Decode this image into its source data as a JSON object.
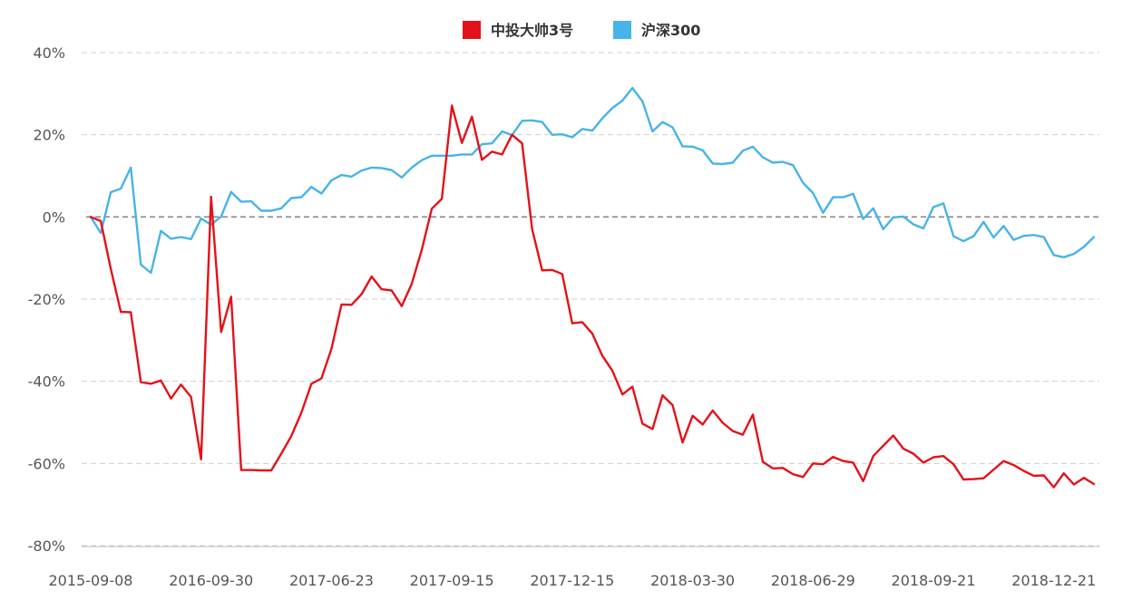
{
  "chart_data": {
    "type": "line",
    "title": "",
    "xlabel": "",
    "ylabel": "",
    "ylim": [
      -80,
      40
    ],
    "y_unit": "%",
    "y_ticks": [
      40,
      20,
      0,
      -20,
      -40,
      -60,
      -80
    ],
    "y_tick_labels": [
      "40%",
      "20%",
      "0%",
      "-20%",
      "-40%",
      "-60%",
      "-80%"
    ],
    "x_tick_labels": [
      "2015-09-08",
      "2016-09-30",
      "2017-06-23",
      "2017-09-15",
      "2017-12-15",
      "2018-03-30",
      "2018-06-29",
      "2018-09-21",
      "2018-12-21"
    ],
    "x_tick_indices": [
      0,
      12,
      24,
      36,
      48,
      60,
      72,
      84,
      96
    ],
    "grid": true,
    "legend_position": "top-center",
    "series": [
      {
        "name": "中投大帅3号",
        "color": "#e3121a",
        "values": [
          0,
          -1,
          -12.6,
          -23.1,
          -23.2,
          -40.2,
          -40.6,
          -39.8,
          -44.2,
          -40.8,
          -43.8,
          -59.0,
          4.9,
          -28,
          -19.4,
          -61.6,
          -61.6,
          -61.7,
          -61.7,
          -57.6,
          -53.3,
          -47.6,
          -40.6,
          -39.3,
          -32.1,
          -21.3,
          -21.4,
          -18.8,
          -14.5,
          -17.6,
          -17.9,
          -21.7,
          -16.3,
          -8,
          2.0,
          4.4,
          27.1,
          18,
          24.4,
          13.9,
          15.9,
          15.2,
          20.0,
          17.9,
          -2.9,
          -13.0,
          -12.9,
          -13.9,
          -25.9,
          -25.6,
          -28.4,
          -33.8,
          -37.4,
          -43.2,
          -41.3,
          -50.3,
          -51.6,
          -43.4,
          -45.8,
          -54.9,
          -48.4,
          -50.5,
          -47.1,
          -50.1,
          -52.1,
          -53.0,
          -48.1,
          -59.6,
          -61.2,
          -61.1,
          -62.6,
          -63.3,
          -60.0,
          -60.2,
          -58.4,
          -59.4,
          -59.8,
          -64.3,
          -58.2,
          -55.7,
          -53.2,
          -56.4,
          -57.6,
          -59.8,
          -58.5,
          -58.2,
          -60.2,
          -63.9,
          -63.8,
          -63.6,
          -61.5,
          -59.4,
          -60.4,
          -61.8,
          -63.0,
          -62.9,
          -65.8,
          -62.4,
          -65.1,
          -63.5,
          -65.0
        ]
      },
      {
        "name": "沪深300",
        "color": "#46b4e8",
        "values": [
          0,
          -3.9,
          6.0,
          6.9,
          12.0,
          -11.6,
          -13.6,
          -3.4,
          -5.3,
          -4.9,
          -5.4,
          -0.4,
          -1.9,
          0.1,
          6.1,
          3.7,
          3.8,
          1.5,
          1.5,
          2.1,
          4.6,
          4.8,
          7.3,
          5.7,
          8.9,
          10.2,
          9.8,
          11.3,
          12.0,
          11.9,
          11.4,
          9.6,
          12.0,
          13.8,
          14.9,
          14.9,
          14.9,
          15.2,
          15.2,
          17.7,
          17.9,
          20.8,
          19.9,
          23.4,
          23.5,
          23.1,
          20.0,
          20.1,
          19.4,
          21.4,
          21.0,
          24.0,
          26.5,
          28.3,
          31.4,
          28.1,
          20.8,
          23.1,
          21.8,
          17.2,
          17.1,
          16.2,
          13.0,
          12.9,
          13.2,
          16.1,
          17.1,
          14.5,
          13.2,
          13.4,
          12.6,
          8.3,
          5.8,
          1.0,
          4.8,
          4.8,
          5.6,
          -0.5,
          2.1,
          -3.0,
          -0.1,
          0.1,
          -1.8,
          -2.8,
          2.4,
          3.3,
          -4.7,
          -5.9,
          -4.7,
          -1.2,
          -5.0,
          -2.2,
          -5.6,
          -4.6,
          -4.4,
          -4.9,
          -9.3,
          -9.8,
          -9.0,
          -7.3,
          -4.9
        ]
      }
    ]
  }
}
